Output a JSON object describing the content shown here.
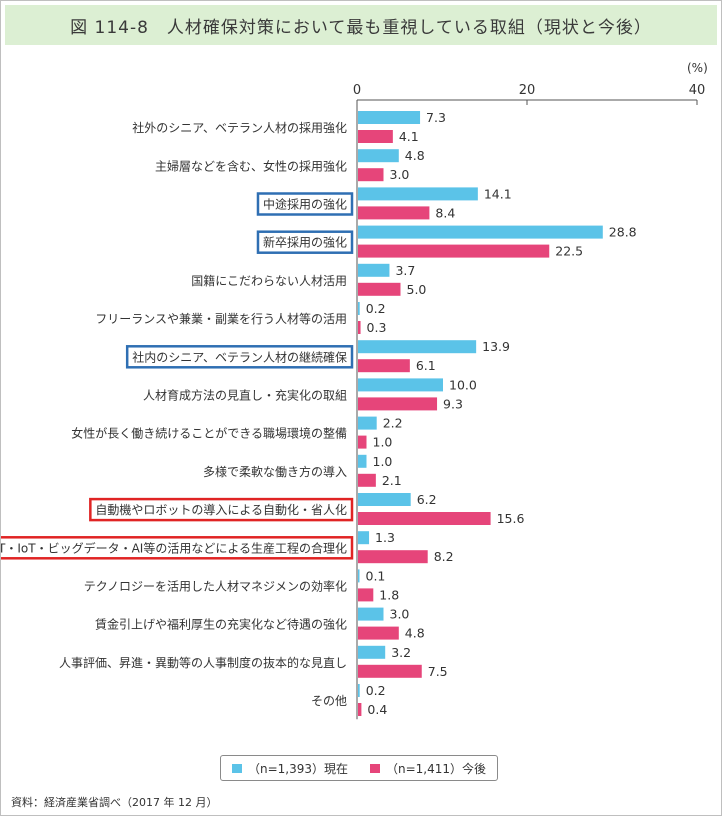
{
  "figure": {
    "title": "図 114-8　人材確保対策において最も重視している取組（現状と今後）",
    "unit": "(%)",
    "source": "資料：経済産業省調べ（2017 年 12 月）"
  },
  "legend": {
    "current": "（n=1,393）現在",
    "future": "（n=1,411）今後"
  },
  "colors": {
    "current": "#5bc3e8",
    "future": "#e6457a",
    "blue_box": "#2f6fb3",
    "red_box": "#e02424",
    "title_bg": "#dcefd3"
  },
  "chart_data": {
    "type": "bar",
    "orientation": "horizontal",
    "xlim": [
      0,
      40
    ],
    "xticks": [
      0,
      20,
      40
    ],
    "categories": [
      "社外のシニア、ベテラン人材の採用強化",
      "主婦層などを含む、女性の採用強化",
      "中途採用の強化",
      "新卒採用の強化",
      "国籍にこだわらない人材活用",
      "フリーランスや兼業・副業を行う人材等の活用",
      "社内のシニア、ベテラン人材の継続確保",
      "人材育成方法の見直し・充実化の取組",
      "女性が長く働き続けることができる職場環境の整備",
      "多様で柔軟な働き方の導入",
      "自動機やロボットの導入による自動化・省人化",
      "IT・IoT・ビッグデータ・AI等の活用などによる生産工程の合理化",
      "テクノロジーを活用した人材マネジメンの効率化",
      "賃金引上げや福利厚生の充実化など待遇の強化",
      "人事評価、昇進・異動等の人事制度の抜本的な見直し",
      "その他"
    ],
    "highlight": [
      "none",
      "none",
      "blue",
      "blue",
      "none",
      "none",
      "blue",
      "none",
      "none",
      "none",
      "red",
      "red",
      "none",
      "none",
      "none",
      "none"
    ],
    "series": [
      {
        "name": "（n=1,393）現在",
        "values": [
          7.3,
          4.8,
          14.1,
          28.8,
          3.7,
          0.2,
          13.9,
          10.0,
          2.2,
          1.0,
          6.2,
          1.3,
          0.1,
          3.0,
          3.2,
          0.2
        ],
        "labels": [
          "7.3",
          "4.8",
          "14.1",
          "28.8",
          "3.7",
          "0.2",
          "13.9",
          "10.0",
          "2.2",
          "1.0",
          "6.2",
          "1.3",
          "0.1",
          "3.0",
          "3.2",
          "0.2"
        ]
      },
      {
        "name": "（n=1,411）今後",
        "values": [
          4.1,
          3.0,
          8.4,
          22.5,
          5.0,
          0.3,
          6.1,
          9.3,
          1.0,
          2.1,
          15.6,
          8.2,
          1.8,
          4.8,
          7.5,
          0.4
        ],
        "labels": [
          "4.1",
          "3.0",
          "8.4",
          "22.5",
          "5.0",
          "0.3",
          "6.1",
          "9.3",
          "1.0",
          "2.1",
          "15.6",
          "8.2",
          "1.8",
          "4.8",
          "7.5",
          "0.4"
        ]
      }
    ]
  }
}
